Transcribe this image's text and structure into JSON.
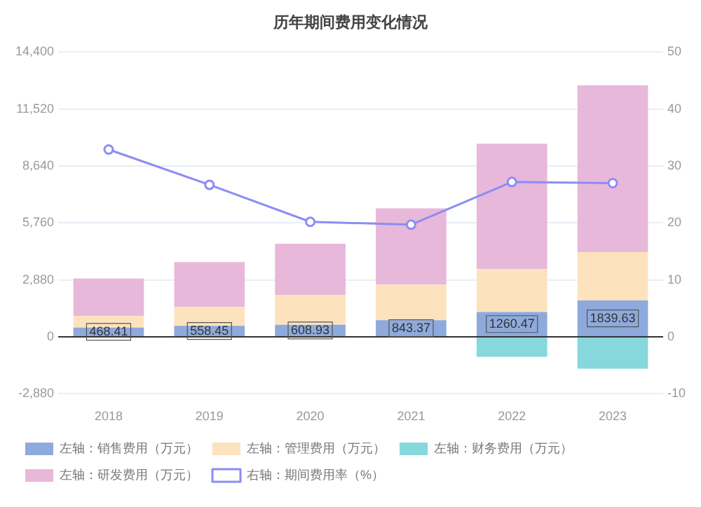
{
  "chart_data": {
    "type": "bar",
    "title": "历年期间费用变化情况",
    "stacked": true,
    "categories": [
      "2018",
      "2019",
      "2020",
      "2021",
      "2022",
      "2023"
    ],
    "series": [
      {
        "name": "左轴：销售费用（万元）",
        "color": "#8eaadc",
        "values": [
          468.41,
          558.45,
          608.93,
          843.37,
          1260.47,
          1839.63
        ],
        "value_labels": [
          "468.41",
          "558.45",
          "608.93",
          "843.37",
          "1260.47",
          "1839.63"
        ]
      },
      {
        "name": "左轴：管理费用（万元）",
        "color": "#fde3bd",
        "values": [
          600,
          960,
          1500,
          1800,
          2160,
          2450
        ]
      },
      {
        "name": "左轴：财务费用（万元）",
        "color": "#86d8dc",
        "values": [
          0,
          0,
          0,
          0,
          -1010,
          -1610
        ]
      },
      {
        "name": "左轴：研发费用（万元）",
        "color": "#e8b8da",
        "values": [
          1880,
          2260,
          2600,
          3860,
          6350,
          8430
        ]
      },
      {
        "name": "右轴：期间费用率（%）",
        "type": "line",
        "axis": "y2",
        "color": "#8c8cf5",
        "marker": "circle",
        "values": [
          32.9,
          26.7,
          20.2,
          19.7,
          27.2,
          27.0
        ]
      }
    ],
    "ylim": [
      -2880,
      14400
    ],
    "yticks": [
      {
        "value": -2880,
        "label": "-2,880"
      },
      0,
      {
        "value": 2880,
        "label": "2,880"
      },
      {
        "value": 5760,
        "label": "5,760"
      },
      {
        "value": 8640,
        "label": "8,640"
      },
      {
        "value": 11520,
        "label": "11,520"
      },
      {
        "value": 14400,
        "label": "14,400"
      }
    ],
    "y2lim": [
      -10,
      50
    ],
    "y2ticks": [
      -10,
      0,
      10,
      20,
      30,
      40,
      50
    ],
    "grid": "y",
    "legend": "bottom"
  }
}
